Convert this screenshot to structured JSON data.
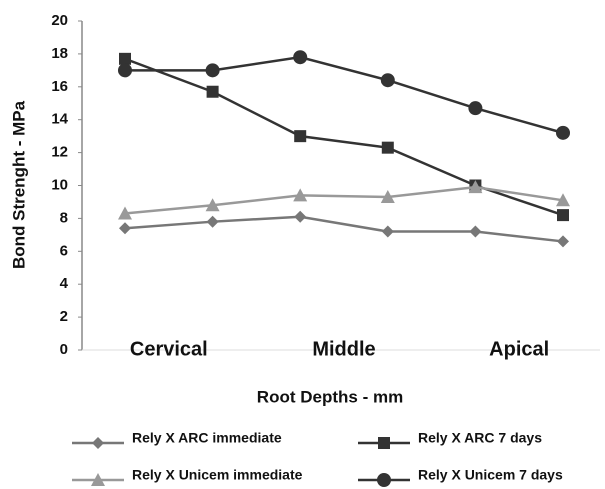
{
  "chart_data": {
    "type": "line",
    "x_label": "Root Depths  -  mm",
    "y_label": "Bond Strenght  - MPa",
    "categories": [
      "Cervical",
      null,
      "Middle",
      null,
      "Apical",
      null
    ],
    "ylim": [
      0,
      20
    ],
    "yticks": [
      0,
      2,
      4,
      6,
      8,
      10,
      12,
      14,
      16,
      18,
      20
    ],
    "series": [
      {
        "name": "Rely X ARC immediate",
        "color": "#777777",
        "marker": "diamond",
        "values": [
          7.4,
          7.8,
          8.1,
          7.2,
          7.2,
          6.6
        ]
      },
      {
        "name": "Rely X ARC 7 days",
        "color": "#333333",
        "marker": "square",
        "values": [
          17.7,
          15.7,
          13.0,
          12.3,
          10.0,
          8.2
        ]
      },
      {
        "name": "Rely X Unicem immediate",
        "color": "#999999",
        "marker": "triangle",
        "values": [
          8.3,
          8.8,
          9.4,
          9.3,
          9.9,
          9.1
        ]
      },
      {
        "name": "Rely X Unicem 7 days",
        "color": "#333333",
        "marker": "circle",
        "values": [
          17.0,
          17.0,
          17.8,
          16.4,
          14.7,
          13.2
        ]
      }
    ]
  }
}
